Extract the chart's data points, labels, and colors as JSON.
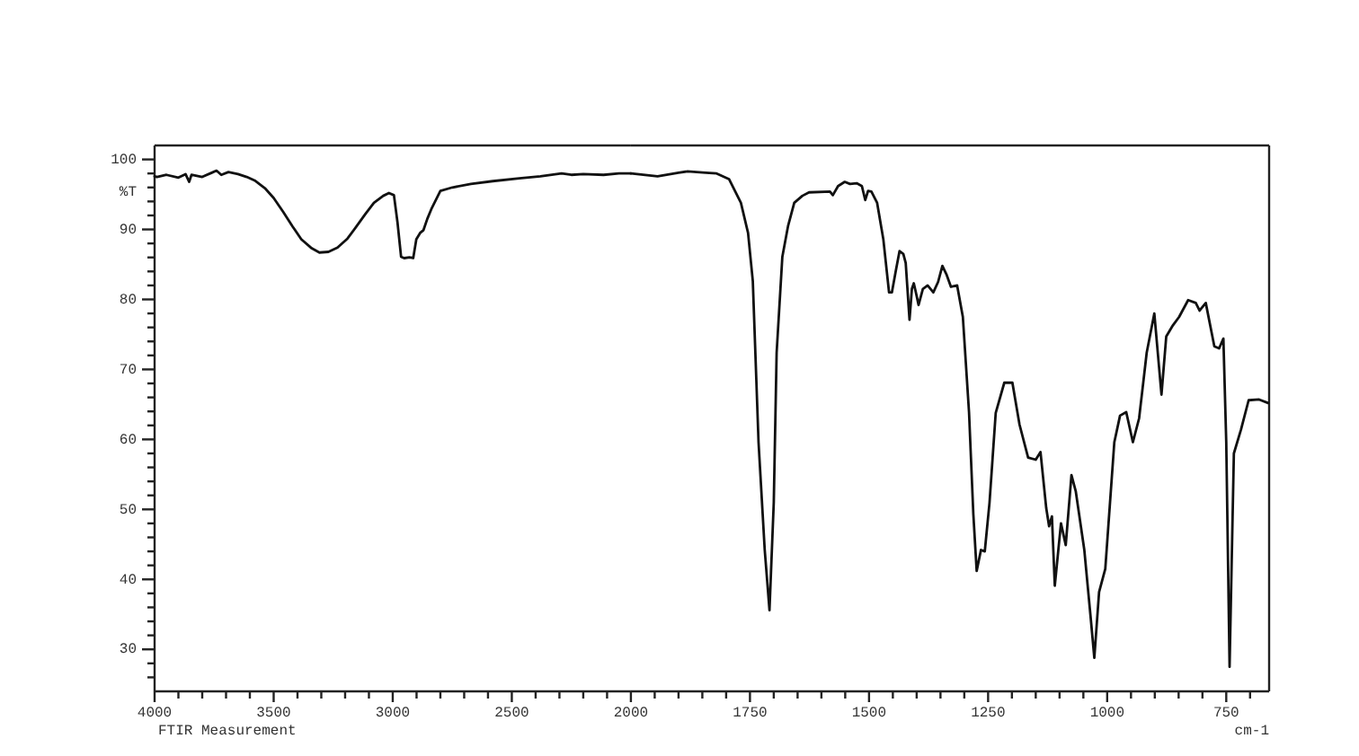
{
  "chart_data": [
    {
      "type": "line",
      "ylabel": "%T",
      "annotations": [
        "FTIR Measurement"
      ],
      "color": "#111111",
      "x": [
        4000,
        3990,
        3950,
        3900,
        3870,
        3855,
        3845,
        3800,
        3760,
        3740,
        3720,
        3690,
        3650,
        3613,
        3580,
        3537,
        3500,
        3460,
        3420,
        3384,
        3340,
        3308,
        3270,
        3232,
        3190,
        3155,
        3115,
        3079,
        3040,
        3016,
        2995,
        2980,
        2965,
        2952,
        2930,
        2914,
        2901,
        2885,
        2871,
        2855,
        2838,
        2800,
        2750,
        2672,
        2580,
        2469,
        2380,
        2291,
        2250,
        2200,
        2115,
        2050,
        2000
      ],
      "values": [
        97.6,
        97.5,
        97.8,
        97.4,
        97.9,
        96.8,
        97.8,
        97.5,
        98.1,
        98.4,
        97.8,
        98.2,
        97.9,
        97.5,
        97,
        95.9,
        94.5,
        92.5,
        90.4,
        88.6,
        87.3,
        86.7,
        86.8,
        87.4,
        88.7,
        90.3,
        92.2,
        93.8,
        94.8,
        95.2,
        94.9,
        91,
        86.1,
        85.9,
        86,
        85.9,
        88.6,
        89.5,
        89.9,
        91.5,
        92.9,
        95.5,
        96,
        96.5,
        96.9,
        97.3,
        97.6,
        98,
        97.8,
        97.9,
        97.8,
        98,
        98
      ],
      "xlim": [
        4000,
        2000
      ],
      "xticks": [
        4000,
        {
          "value": 3900,
          "label": null
        },
        {
          "value": 3800,
          "label": null
        },
        {
          "value": 3700,
          "label": null
        },
        {
          "value": 3600,
          "label": null
        },
        3500,
        {
          "value": 3400,
          "label": null
        },
        {
          "value": 3300,
          "label": null
        },
        {
          "value": 3200,
          "label": null
        },
        {
          "value": 3100,
          "label": null
        },
        3000,
        {
          "value": 2900,
          "label": null
        },
        {
          "value": 2800,
          "label": null
        },
        {
          "value": 2700,
          "label": null
        },
        {
          "value": 2600,
          "label": null
        },
        2500,
        {
          "value": 2400,
          "label": null
        },
        {
          "value": 2300,
          "label": null
        },
        {
          "value": 2200,
          "label": null
        },
        {
          "value": 2100,
          "label": null
        },
        2000
      ],
      "ylim": [
        24,
        102
      ],
      "yticks": [
        {
          "value": 26,
          "label": null
        },
        {
          "value": 28,
          "label": null
        },
        30,
        {
          "value": 32,
          "label": null
        },
        {
          "value": 34,
          "label": null
        },
        {
          "value": 36,
          "label": null
        },
        {
          "value": 38,
          "label": null
        },
        40,
        {
          "value": 42,
          "label": null
        },
        {
          "value": 44,
          "label": null
        },
        {
          "value": 46,
          "label": null
        },
        {
          "value": 48,
          "label": null
        },
        50,
        {
          "value": 52,
          "label": null
        },
        {
          "value": 54,
          "label": null
        },
        {
          "value": 56,
          "label": null
        },
        {
          "value": 58,
          "label": null
        },
        60,
        {
          "value": 62,
          "label": null
        },
        {
          "value": 64,
          "label": null
        },
        {
          "value": 66,
          "label": null
        },
        {
          "value": 68,
          "label": null
        },
        70,
        {
          "value": 72,
          "label": null
        },
        {
          "value": 74,
          "label": null
        },
        {
          "value": 76,
          "label": null
        },
        {
          "value": 78,
          "label": null
        },
        80,
        {
          "value": 82,
          "label": null
        },
        {
          "value": 84,
          "label": null
        },
        {
          "value": 86,
          "label": null
        },
        {
          "value": 88,
          "label": null
        },
        90,
        {
          "value": 92,
          "label": null
        },
        {
          "value": 94,
          "label": null
        },
        {
          "value": 96,
          "label": null
        },
        {
          "value": 98,
          "label": null
        },
        100
      ]
    },
    {
      "type": "line",
      "xlabel": "cm-1",
      "color": "#111111",
      "x": [
        2000,
        1944,
        1900,
        1881,
        1843,
        1820,
        1794,
        1769,
        1754,
        1744,
        1732,
        1719,
        1709,
        1700,
        1694,
        1682,
        1670,
        1657,
        1640,
        1626,
        1582,
        1576,
        1565,
        1551,
        1540,
        1526,
        1515,
        1508,
        1502,
        1495,
        1483,
        1470,
        1458,
        1452,
        1444,
        1436,
        1428,
        1423,
        1415,
        1410,
        1406,
        1400,
        1396,
        1387,
        1377,
        1365,
        1355,
        1346,
        1337,
        1328,
        1315,
        1303,
        1290,
        1281,
        1274,
        1265,
        1257,
        1247,
        1234,
        1216,
        1199,
        1184,
        1166,
        1150,
        1140,
        1128,
        1122,
        1116,
        1110,
        1097,
        1087,
        1075,
        1066,
        1048,
        1035,
        1027,
        1017,
        1004,
        985,
        973,
        960,
        946,
        933,
        917,
        901,
        886,
        876,
        862,
        849,
        830,
        814,
        806,
        793,
        775,
        765,
        756,
        750,
        743,
        734,
        719,
        703,
        681,
        662
      ],
      "values": [
        98,
        97.6,
        98.1,
        98.3,
        98.1,
        98,
        97.2,
        93.8,
        89.5,
        82.6,
        59.6,
        44.2,
        35.6,
        51,
        72.4,
        86.1,
        90.5,
        93.8,
        94.8,
        95.3,
        95.4,
        94.9,
        96.2,
        96.8,
        96.5,
        96.6,
        96.2,
        94.2,
        95.5,
        95.4,
        93.8,
        88.6,
        81,
        81,
        84,
        86.9,
        86.5,
        85.2,
        77.1,
        81.5,
        82.3,
        80.5,
        79.2,
        81.5,
        82,
        81,
        82.5,
        84.8,
        83.5,
        81.8,
        82,
        77.5,
        63.8,
        49.3,
        41.2,
        44.2,
        44,
        51,
        63.8,
        68.1,
        68.1,
        62.1,
        57.4,
        57.1,
        58.2,
        50.2,
        47.6,
        49,
        39.1,
        48,
        44.9,
        54.9,
        52.6,
        44.2,
        34.8,
        28.8,
        38.2,
        41.5,
        59.6,
        63.4,
        63.9,
        59.6,
        63,
        72.4,
        78,
        66.4,
        74.7,
        76.3,
        77.5,
        79.9,
        79.5,
        78.4,
        79.5,
        73.3,
        73,
        74.4,
        59.6,
        27.5,
        58,
        61.4,
        65.6,
        65.7,
        65.2
      ],
      "xlim": [
        2000,
        660
      ],
      "xticks": [
        {
          "value": 1950,
          "label": null
        },
        {
          "value": 1900,
          "label": null
        },
        {
          "value": 1850,
          "label": null
        },
        {
          "value": 1800,
          "label": null
        },
        1750,
        {
          "value": 1700,
          "label": null
        },
        {
          "value": 1650,
          "label": null
        },
        {
          "value": 1600,
          "label": null
        },
        {
          "value": 1550,
          "label": null
        },
        1500,
        {
          "value": 1450,
          "label": null
        },
        {
          "value": 1400,
          "label": null
        },
        {
          "value": 1350,
          "label": null
        },
        {
          "value": 1300,
          "label": null
        },
        1250,
        {
          "value": 1200,
          "label": null
        },
        {
          "value": 1150,
          "label": null
        },
        {
          "value": 1100,
          "label": null
        },
        {
          "value": 1050,
          "label": null
        },
        1000,
        {
          "value": 950,
          "label": null
        },
        {
          "value": 900,
          "label": null
        },
        {
          "value": 850,
          "label": null
        },
        {
          "value": 800,
          "label": null
        },
        750,
        {
          "value": 700,
          "label": null
        }
      ],
      "ylim": [
        24,
        102
      ],
      "tick_labels": "x"
    }
  ]
}
